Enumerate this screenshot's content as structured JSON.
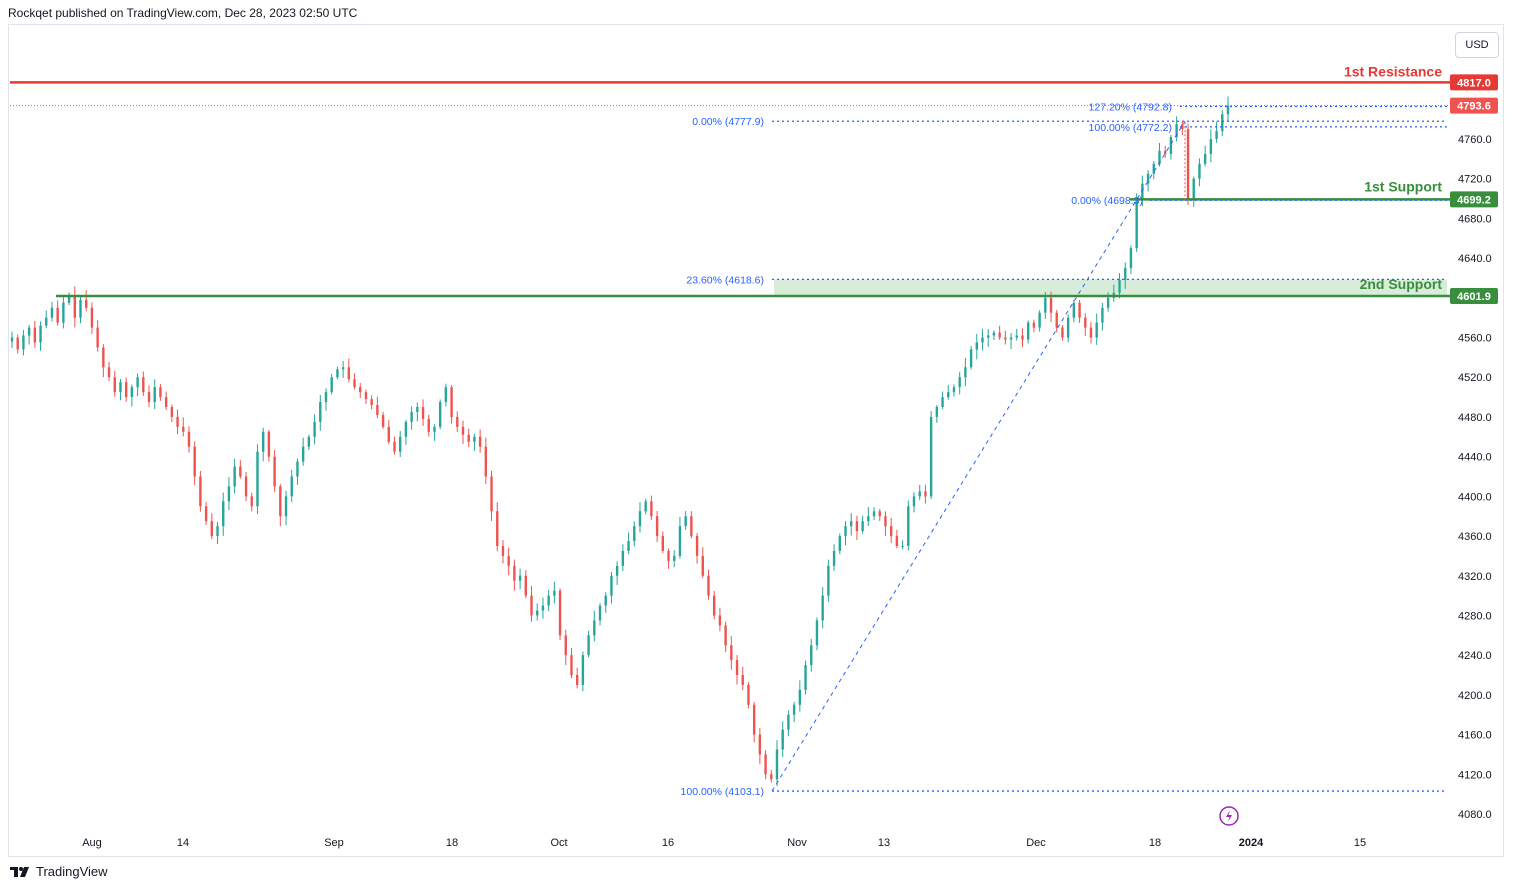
{
  "header": {
    "attribution": "Rockqet published on TradingView.com, Dec 28, 2023 02:50 UTC"
  },
  "currency_label": "USD",
  "footer": {
    "logo_text": "TradingView"
  },
  "chart_data": {
    "type": "candlestick",
    "y_ticks": [
      4080.0,
      4120.0,
      4160.0,
      4200.0,
      4240.0,
      4280.0,
      4320.0,
      4360.0,
      4400.0,
      4440.0,
      4480.0,
      4520.0,
      4560.0,
      4600.0,
      4640.0,
      4680.0,
      4720.0,
      4760.0
    ],
    "x_ticks": [
      "Aug",
      "14",
      "Sep",
      "18",
      "Oct",
      "16",
      "Nov",
      "13",
      "Dec",
      "18",
      "2024",
      "15"
    ],
    "levels": [
      {
        "label": "1st Resistance",
        "price": "4817.0",
        "color": "#e53935"
      },
      {
        "label": "1st Support",
        "price": "4699.2",
        "color": "#388e3c"
      },
      {
        "label": "2nd Support",
        "price": "4601.9",
        "color": "#388e3c"
      }
    ],
    "current_price": "4793.6",
    "fib_labels": [
      "0.00% (4777.9)",
      "23.60% (4618.6)",
      "100.00% (4103.1)",
      "127.20% (4792.8)",
      "100.00% (4772.2)",
      "0.00% (4698.3)"
    ],
    "series": [
      {
        "values": [
          4560,
          4548,
          4562,
          4570,
          4555,
          4572,
          4580,
          4590,
          4575,
          4595,
          4602,
          4580,
          4598,
          4590,
          4570,
          4550,
          4530,
          4520,
          4505,
          4515,
          4500,
          4510,
          4520,
          4505,
          4495,
          4510,
          4500,
          4490,
          4480,
          4470,
          4465,
          4450,
          4420,
          4390,
          4375,
          4360,
          4370,
          4395,
          4410,
          4430,
          4420,
          4400,
          4390,
          4445,
          4465,
          4440,
          4410,
          4380,
          4400,
          4420,
          4435,
          4450,
          4460,
          4475,
          4495,
          4505,
          4520,
          4528,
          4530,
          4518,
          4510,
          4505,
          4498,
          4492,
          4482,
          4470,
          4455,
          4445,
          4460,
          4475,
          4485,
          4490,
          4478,
          4465,
          4470,
          4495,
          4510,
          4480,
          4470,
          4462,
          4455,
          4460,
          4450,
          4420,
          4385,
          4350,
          4340,
          4330,
          4315,
          4320,
          4300,
          4280,
          4285,
          4290,
          4300,
          4305,
          4260,
          4240,
          4220,
          4210,
          4240,
          4260,
          4275,
          4290,
          4300,
          4320,
          4330,
          4345,
          4355,
          4370,
          4385,
          4395,
          4380,
          4360,
          4345,
          4335,
          4340,
          4370,
          4380,
          4360,
          4340,
          4320,
          4300,
          4280,
          4270,
          4250,
          4235,
          4220,
          4210,
          4190,
          4160,
          4140,
          4120,
          4115,
          4145,
          4165,
          4180,
          4190,
          4205,
          4230,
          4250,
          4275,
          4300,
          4330,
          4345,
          4360,
          4370,
          4375,
          4365,
          4375,
          4380,
          4385,
          4380,
          4370,
          4360,
          4350,
          4350,
          4390,
          4400,
          4405,
          4400,
          4480,
          4490,
          4500,
          4505,
          4510,
          4520,
          4530,
          4548,
          4555,
          4560,
          4562,
          4565,
          4560,
          4558,
          4560,
          4562,
          4558,
          4575,
          4570,
          4585,
          4600,
          4585,
          4570,
          4560,
          4580,
          4595,
          4580,
          4570,
          4560,
          4575,
          4590,
          4600,
          4605,
          4618,
          4630,
          4650,
          4700,
          4715,
          4725,
          4735,
          4748,
          4745,
          4762,
          4775,
          4770,
          4700,
          4720,
          4735,
          4745,
          4760,
          4768,
          4785,
          4793.6
        ]
      }
    ]
  }
}
